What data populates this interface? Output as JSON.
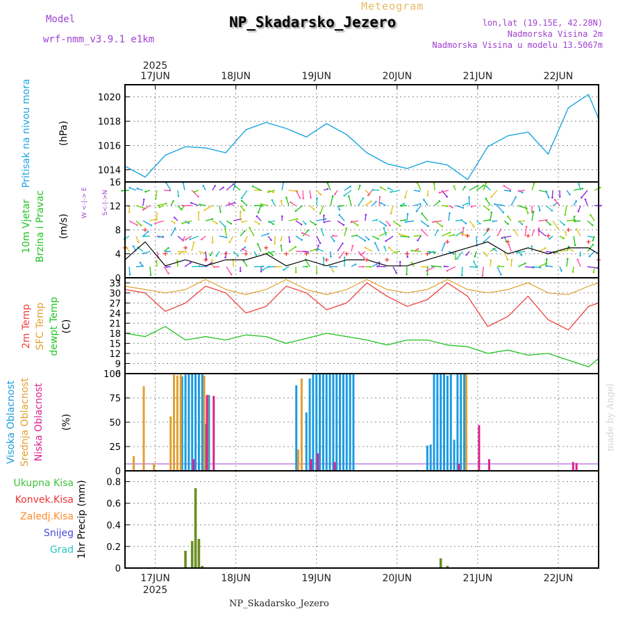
{
  "header": {
    "title": "NP_Skadarsko_Jezero",
    "subtitle": "Meteogram",
    "model_label": "Model",
    "model_name": "wrf-nmm_v3.9.1 e1km",
    "lonlat": "lon,lat (19.15E, 42.28N)",
    "elevation": "Nadmorska Visina 2m",
    "model_elevation": "Nadmorska Visina u modelu 13.5067m"
  },
  "footer": "NP_Skadarsko_Jezero",
  "watermark": "made by Angel",
  "time_axis": {
    "year": "2025",
    "day_labels": [
      "17JUN",
      "18JUN",
      "19JUN",
      "20JUN",
      "21JUN",
      "22JUN"
    ],
    "start": "2025-06-16T15:00",
    "end": "2025-06-22T12:00"
  },
  "panels": {
    "pressure": {
      "ylabel_name": "Pritisak na nivou mora",
      "ylabel_unit": "(hPa)"
    },
    "wind": {
      "ylabel_name": "10m Vjetar",
      "ylabel_name2": "Brzina i Pravac",
      "ylabel_unit": "(m/s)",
      "compass_a": "W <-|-> E",
      "compass_b": "S<-|->N"
    },
    "temp": {
      "ylabel_t2": "2m Temp",
      "ylabel_sfc": "SFC Temp",
      "ylabel_dew": "dewpt Temp",
      "ylabel_unit": "(C)"
    },
    "cloud": {
      "ylabel_high": "Visoka Oblacnost",
      "ylabel_mid": "Srednja Oblacnost",
      "ylabel_low": "Niska Oblacnost",
      "ylabel_unit": "(%)"
    },
    "precip": {
      "legend": [
        "Ukupna Kisa",
        "Konvek.Kisa",
        "Zaledj.Kisa",
        "Snijeg",
        "Grad"
      ],
      "ylabel": "1hr Precip (mm)"
    }
  },
  "colors": {
    "pressure": "#1ba4e0",
    "wind_speed": "#000000",
    "gust": "#ee3333",
    "t2": "#ee4040",
    "sfc": "#e0a030",
    "dew": "#22c322",
    "cloud_high": "#1a9be0",
    "cloud_mid": "#e0a030",
    "cloud_low": "#dd2090",
    "rain_total": "#3dc13d",
    "rain_conv": "#ee3333",
    "rain_frz": "#ff8a2a",
    "snow": "#4a4ae0",
    "hail": "#2ac4c4",
    "precip_bar": "#6b8e23",
    "accent_purple": "#a040d0"
  },
  "chart_data": [
    {
      "type": "line",
      "ylabel": "(hPa)",
      "ylim": [
        1013,
        1021
      ],
      "yticks": [
        1014,
        1016,
        1018,
        1020
      ],
      "grid": true,
      "x": [
        "06-16T15",
        "06-16T21",
        "06-17T03",
        "06-17T09",
        "06-17T15",
        "06-17T21",
        "06-18T03",
        "06-18T09",
        "06-18T15",
        "06-18T21",
        "06-19T03",
        "06-19T09",
        "06-19T15",
        "06-19T21",
        "06-20T03",
        "06-20T09",
        "06-20T15",
        "06-20T21",
        "06-21T03",
        "06-21T09",
        "06-21T15",
        "06-21T21",
        "06-22T03",
        "06-22T09",
        "06-22T12"
      ],
      "series": [
        {
          "values": [
            1014.3,
            1013.4,
            1015.2,
            1015.9,
            1015.8,
            1015.4,
            1017.3,
            1017.9,
            1017.4,
            1016.7,
            1017.8,
            1016.9,
            1015.4,
            1014.5,
            1014.1,
            1014.7,
            1014.4,
            1013.2,
            1015.9,
            1016.8,
            1017.1,
            1015.3,
            1019.1,
            1020.2,
            1018.2
          ]
        }
      ]
    },
    {
      "type": "line",
      "ylabel": "(m/s)",
      "ylim": [
        0,
        16
      ],
      "yticks": [
        0,
        4,
        8,
        12,
        16
      ],
      "grid": true,
      "x": [
        "06-16T15",
        "06-16T21",
        "06-17T03",
        "06-17T09",
        "06-17T15",
        "06-17T21",
        "06-18T03",
        "06-18T09",
        "06-18T15",
        "06-18T21",
        "06-19T03",
        "06-19T09",
        "06-19T15",
        "06-19T21",
        "06-20T03",
        "06-20T09",
        "06-20T15",
        "06-20T21",
        "06-21T03",
        "06-21T09",
        "06-21T15",
        "06-21T21",
        "06-22T03",
        "06-22T09",
        "06-22T12"
      ],
      "series": [
        {
          "values": [
            3,
            6,
            2,
            3,
            2,
            3,
            3,
            4,
            2,
            3,
            2,
            3,
            3,
            2,
            2,
            3,
            4,
            5,
            6,
            4,
            5,
            4,
            5,
            5,
            4
          ]
        },
        {
          "values": [
            5,
            8,
            4,
            5,
            3,
            4,
            4,
            5,
            4,
            4,
            3,
            4,
            3,
            3,
            4,
            4,
            6,
            7,
            8,
            6,
            7,
            7,
            8,
            6,
            3
          ]
        }
      ]
    },
    {
      "type": "line",
      "ylabel": "(C)",
      "ylim": [
        6,
        34.5
      ],
      "yticks": [
        6,
        9,
        12,
        15,
        18,
        21,
        24,
        27,
        30,
        33
      ],
      "grid": true,
      "x": [
        "06-16T15",
        "06-16T21",
        "06-17T03",
        "06-17T09",
        "06-17T15",
        "06-17T21",
        "06-18T03",
        "06-18T09",
        "06-18T15",
        "06-18T21",
        "06-19T03",
        "06-19T09",
        "06-19T15",
        "06-19T21",
        "06-20T03",
        "06-20T09",
        "06-20T15",
        "06-20T21",
        "06-21T03",
        "06-21T09",
        "06-21T15",
        "06-21T21",
        "06-22T03",
        "06-22T09",
        "06-22T12"
      ],
      "series": [
        {
          "values": [
            31,
            30,
            24.5,
            27,
            32,
            30,
            24,
            26,
            32,
            30,
            25,
            27,
            33,
            29,
            26,
            28,
            33,
            29,
            20,
            23,
            29,
            22,
            19,
            26,
            27
          ]
        },
        {
          "values": [
            32,
            31,
            30,
            31,
            34,
            31,
            29.5,
            31,
            34,
            31,
            29.5,
            31,
            34,
            31,
            30,
            31,
            34,
            31,
            30,
            31,
            33,
            30,
            29.5,
            32,
            33
          ]
        },
        {
          "values": [
            18,
            17,
            20,
            16,
            17,
            16,
            17.5,
            17,
            15,
            16.5,
            18,
            17,
            16,
            14.5,
            16,
            16,
            14.5,
            14,
            12,
            13,
            11.5,
            12,
            10,
            8,
            10.5
          ]
        }
      ]
    },
    {
      "type": "bar",
      "ylabel": "(%)",
      "ylim": [
        0,
        100
      ],
      "yticks": [
        0,
        25,
        50,
        75,
        100
      ],
      "grid": true,
      "series": [
        {
          "x": [
            "06-17T08",
            "06-17T09",
            "06-17T10",
            "06-17T11",
            "06-17T12",
            "06-17T13",
            "06-17T14",
            "06-17T15",
            "06-17T16",
            "06-18T18",
            "06-18T21",
            "06-18T22",
            "06-18T23",
            "06-19T00",
            "06-19T01",
            "06-19T02",
            "06-19T03",
            "06-19T04",
            "06-19T05",
            "06-19T06",
            "06-19T07",
            "06-19T08",
            "06-19T09",
            "06-19T10",
            "06-19T11",
            "06-20T06",
            "06-20T09",
            "06-20T10",
            "06-20T11",
            "06-20T12",
            "06-20T13",
            "06-20T14",
            "06-20T15",
            "06-20T16",
            "06-20T17",
            "06-20T18",
            "06-20T19",
            "06-20T20"
          ],
          "values": [
            97,
            99,
            100,
            100,
            100,
            100,
            100,
            48,
            78,
            88,
            60,
            95,
            100,
            100,
            100,
            100,
            100,
            100,
            100,
            100,
            100,
            100,
            100,
            100,
            100,
            1,
            26,
            27,
            100,
            100,
            100,
            100,
            98,
            100,
            32,
            100,
            100,
            100
          ]
        },
        {
          "x": [
            "06-16T18",
            "06-16T21",
            "06-17T00",
            "06-17T05",
            "06-17T06",
            "06-17T07",
            "06-17T08",
            "06-17T15",
            "06-17T16",
            "06-18T19",
            "06-18T20",
            "06-20T21"
          ],
          "values": [
            15,
            87,
            8,
            56,
            99,
            98,
            99,
            98,
            78,
            22,
            95,
            100
          ]
        },
        {
          "x": [
            "06-17T11",
            "06-17T15",
            "06-17T17",
            "06-18T22",
            "06-19T00",
            "06-19T05",
            "06-20T18",
            "06-21T00",
            "06-21T03",
            "06-22T04",
            "06-22T05"
          ],
          "values": [
            12,
            78,
            77,
            12,
            18,
            9,
            7,
            47,
            12,
            9,
            8
          ]
        }
      ]
    },
    {
      "type": "bar",
      "ylabel": "1hr Precip (mm)",
      "ylim": [
        0,
        0.9
      ],
      "yticks": [
        0,
        0.2,
        0.4,
        0.6,
        0.8
      ],
      "grid": true,
      "x": [
        "06-17T09",
        "06-17T11",
        "06-17T12",
        "06-17T13",
        "06-17T14",
        "06-20T13",
        "06-20T15"
      ],
      "values": [
        0.16,
        0.25,
        0.74,
        0.27,
        0.02,
        0.09,
        0.02
      ]
    }
  ]
}
